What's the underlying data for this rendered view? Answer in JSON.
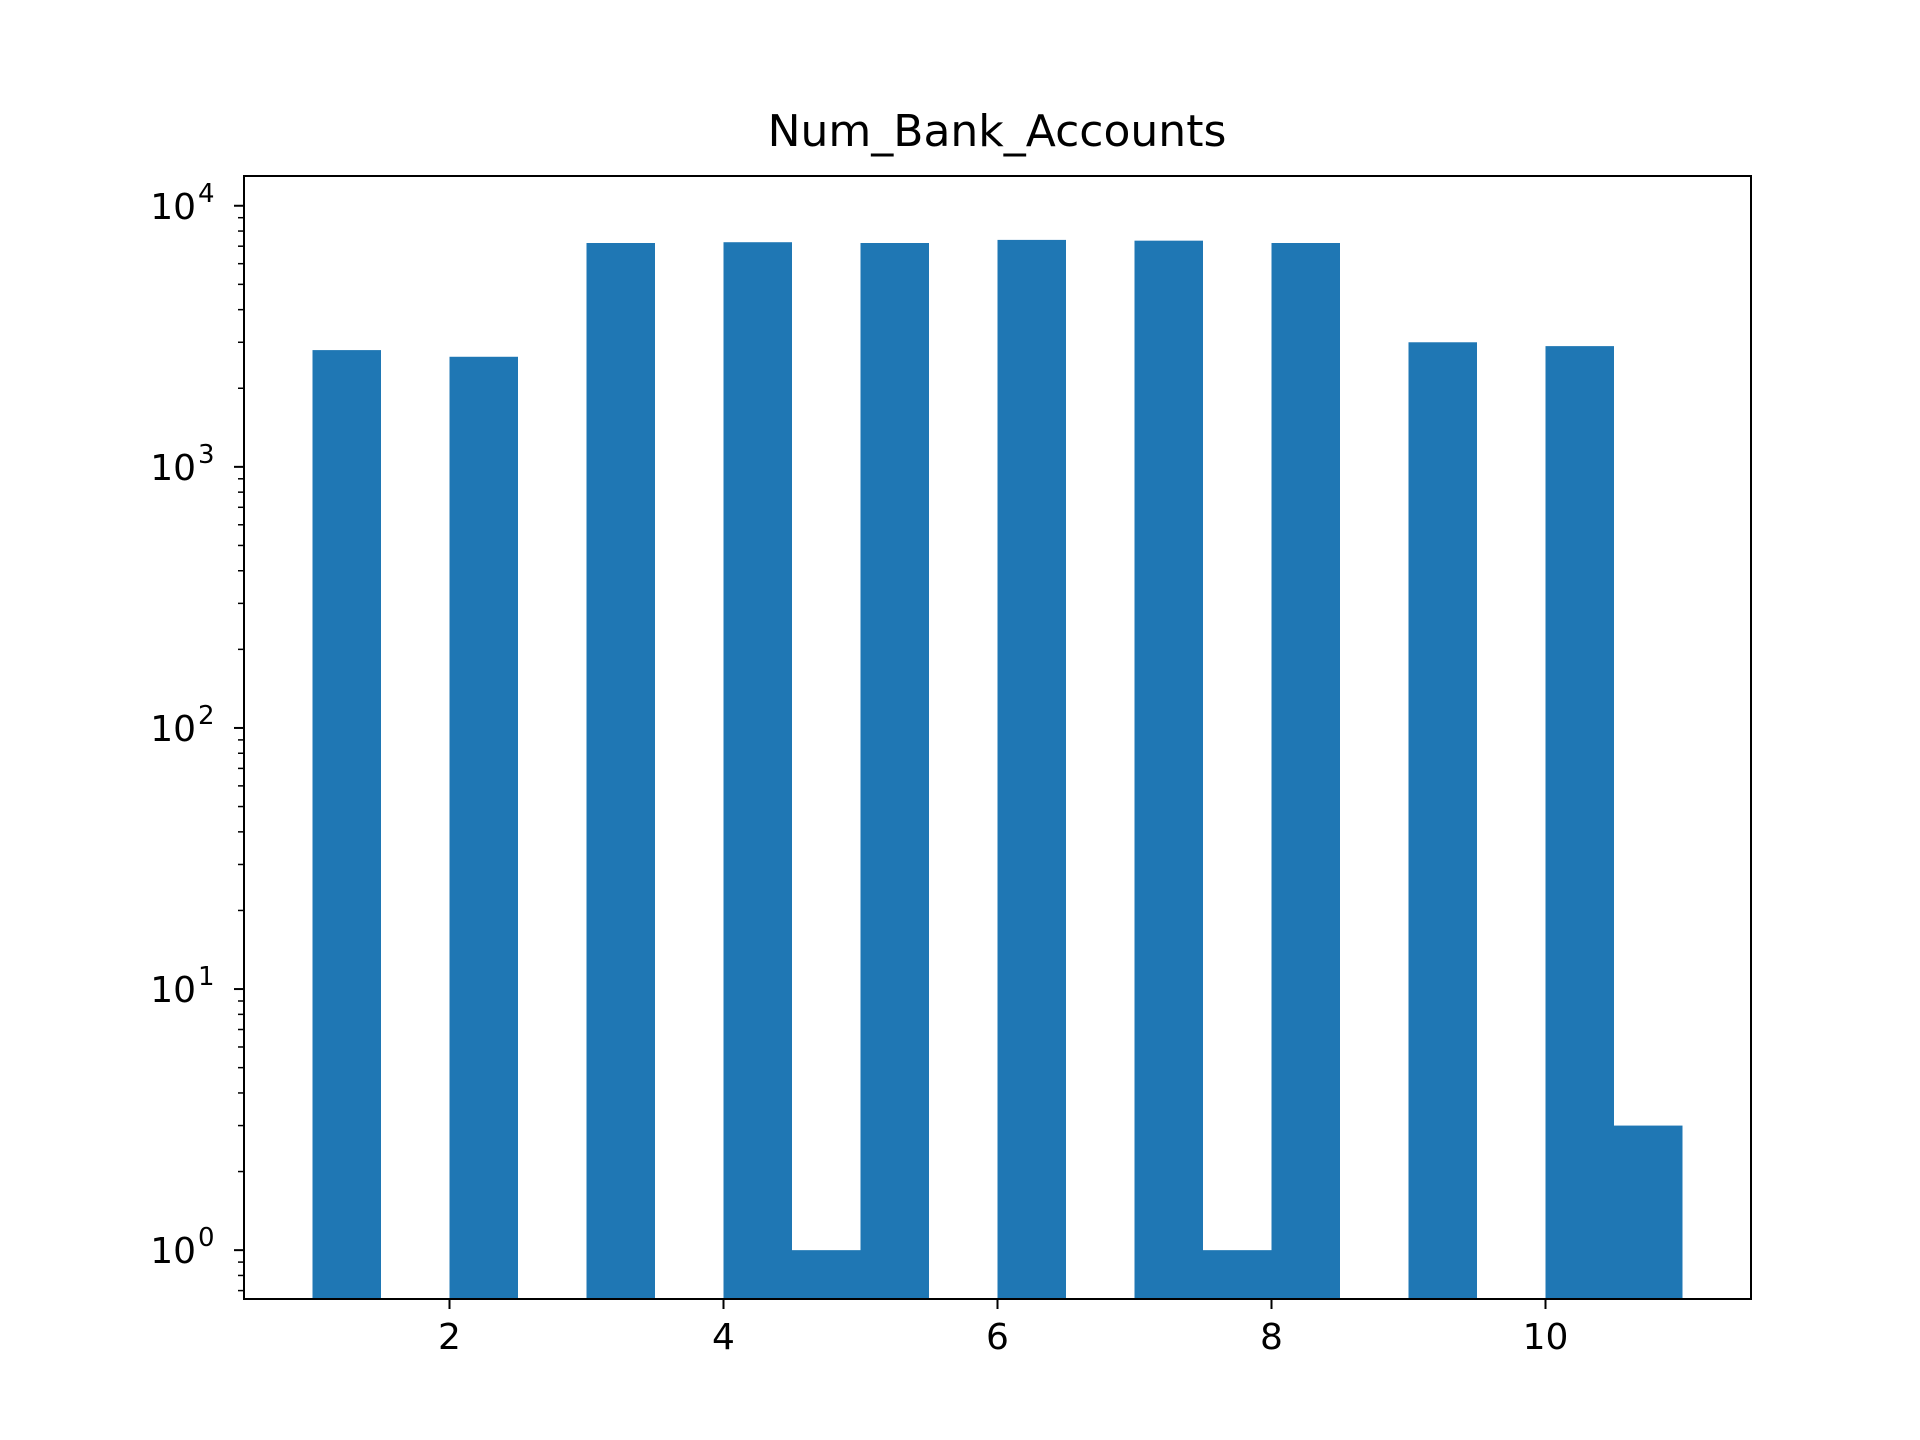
{
  "chart_data": {
    "type": "bar",
    "title": "Num_Bank_Accounts",
    "xlabel": "",
    "ylabel": "",
    "yscale": "log",
    "xlim": [
      0.5,
      11.5
    ],
    "ylim": [
      0.65,
      13000
    ],
    "grid": false,
    "x_ticks": [
      {
        "value": 2,
        "label": "2"
      },
      {
        "value": 4,
        "label": "4"
      },
      {
        "value": 6,
        "label": "6"
      },
      {
        "value": 8,
        "label": "8"
      },
      {
        "value": 10,
        "label": "10"
      }
    ],
    "y_ticks": [
      {
        "value": 1,
        "base": "10",
        "exp": "0"
      },
      {
        "value": 10,
        "base": "10",
        "exp": "1"
      },
      {
        "value": 100,
        "base": "10",
        "exp": "2"
      },
      {
        "value": 1000,
        "base": "10",
        "exp": "3"
      },
      {
        "value": 10000,
        "base": "10",
        "exp": "4"
      }
    ],
    "bar_color": "#1f77b4",
    "bins": [
      {
        "x0": 1.0,
        "x1": 1.5,
        "count": 2800
      },
      {
        "x0": 1.5,
        "x1": 2.0,
        "count": 0
      },
      {
        "x0": 2.0,
        "x1": 2.5,
        "count": 2640
      },
      {
        "x0": 2.5,
        "x1": 3.0,
        "count": 0
      },
      {
        "x0": 3.0,
        "x1": 3.5,
        "count": 7200
      },
      {
        "x0": 3.5,
        "x1": 4.0,
        "count": 0
      },
      {
        "x0": 4.0,
        "x1": 4.5,
        "count": 7250
      },
      {
        "x0": 4.5,
        "x1": 5.0,
        "count": 1
      },
      {
        "x0": 5.0,
        "x1": 5.5,
        "count": 7200
      },
      {
        "x0": 5.5,
        "x1": 6.0,
        "count": 0
      },
      {
        "x0": 6.0,
        "x1": 6.5,
        "count": 7400
      },
      {
        "x0": 6.5,
        "x1": 7.0,
        "count": 0
      },
      {
        "x0": 7.0,
        "x1": 7.5,
        "count": 7350
      },
      {
        "x0": 7.5,
        "x1": 8.0,
        "count": 1
      },
      {
        "x0": 8.0,
        "x1": 8.5,
        "count": 7200
      },
      {
        "x0": 8.5,
        "x1": 9.0,
        "count": 0
      },
      {
        "x0": 9.0,
        "x1": 9.5,
        "count": 3000
      },
      {
        "x0": 9.5,
        "x1": 10.0,
        "count": 0
      },
      {
        "x0": 10.0,
        "x1": 10.5,
        "count": 2900
      },
      {
        "x0": 10.5,
        "x1": 11.0,
        "count": 3
      }
    ]
  }
}
